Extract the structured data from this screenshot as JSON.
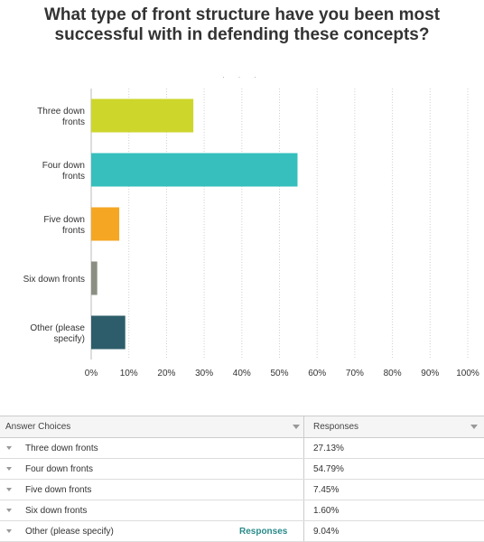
{
  "title": "What type of front structure have you been most successful with in defending these concepts?",
  "dots": "· · ·",
  "chart_data": {
    "type": "bar",
    "orientation": "horizontal",
    "categories": [
      [
        "Three down",
        "fronts"
      ],
      [
        "Four down",
        "fronts"
      ],
      [
        "Five down",
        "fronts"
      ],
      [
        "Six down fronts"
      ],
      [
        "Other (please",
        "specify)"
      ]
    ],
    "values": [
      27.13,
      54.79,
      7.45,
      1.6,
      9.04
    ],
    "colors": [
      "#cdd62b",
      "#36bfbd",
      "#f5a623",
      "#8a8f82",
      "#2d5d6b"
    ],
    "xlim": [
      0,
      100
    ],
    "xticks": [
      0,
      10,
      20,
      30,
      40,
      50,
      60,
      70,
      80,
      90,
      100
    ],
    "xtick_labels": [
      "0%",
      "10%",
      "20%",
      "30%",
      "40%",
      "50%",
      "60%",
      "70%",
      "80%",
      "90%",
      "100%"
    ],
    "grid": true
  },
  "table": {
    "headers": {
      "choice": "Answer Choices",
      "responses": "Responses"
    },
    "rows": [
      {
        "label": "Three down fronts",
        "value": "27.13%",
        "link": ""
      },
      {
        "label": "Four down fronts",
        "value": "54.79%",
        "link": ""
      },
      {
        "label": "Five down fronts",
        "value": "7.45%",
        "link": ""
      },
      {
        "label": "Six down fronts",
        "value": "1.60%",
        "link": ""
      },
      {
        "label": "Other (please specify)",
        "value": "9.04%",
        "link": "Responses"
      }
    ]
  }
}
